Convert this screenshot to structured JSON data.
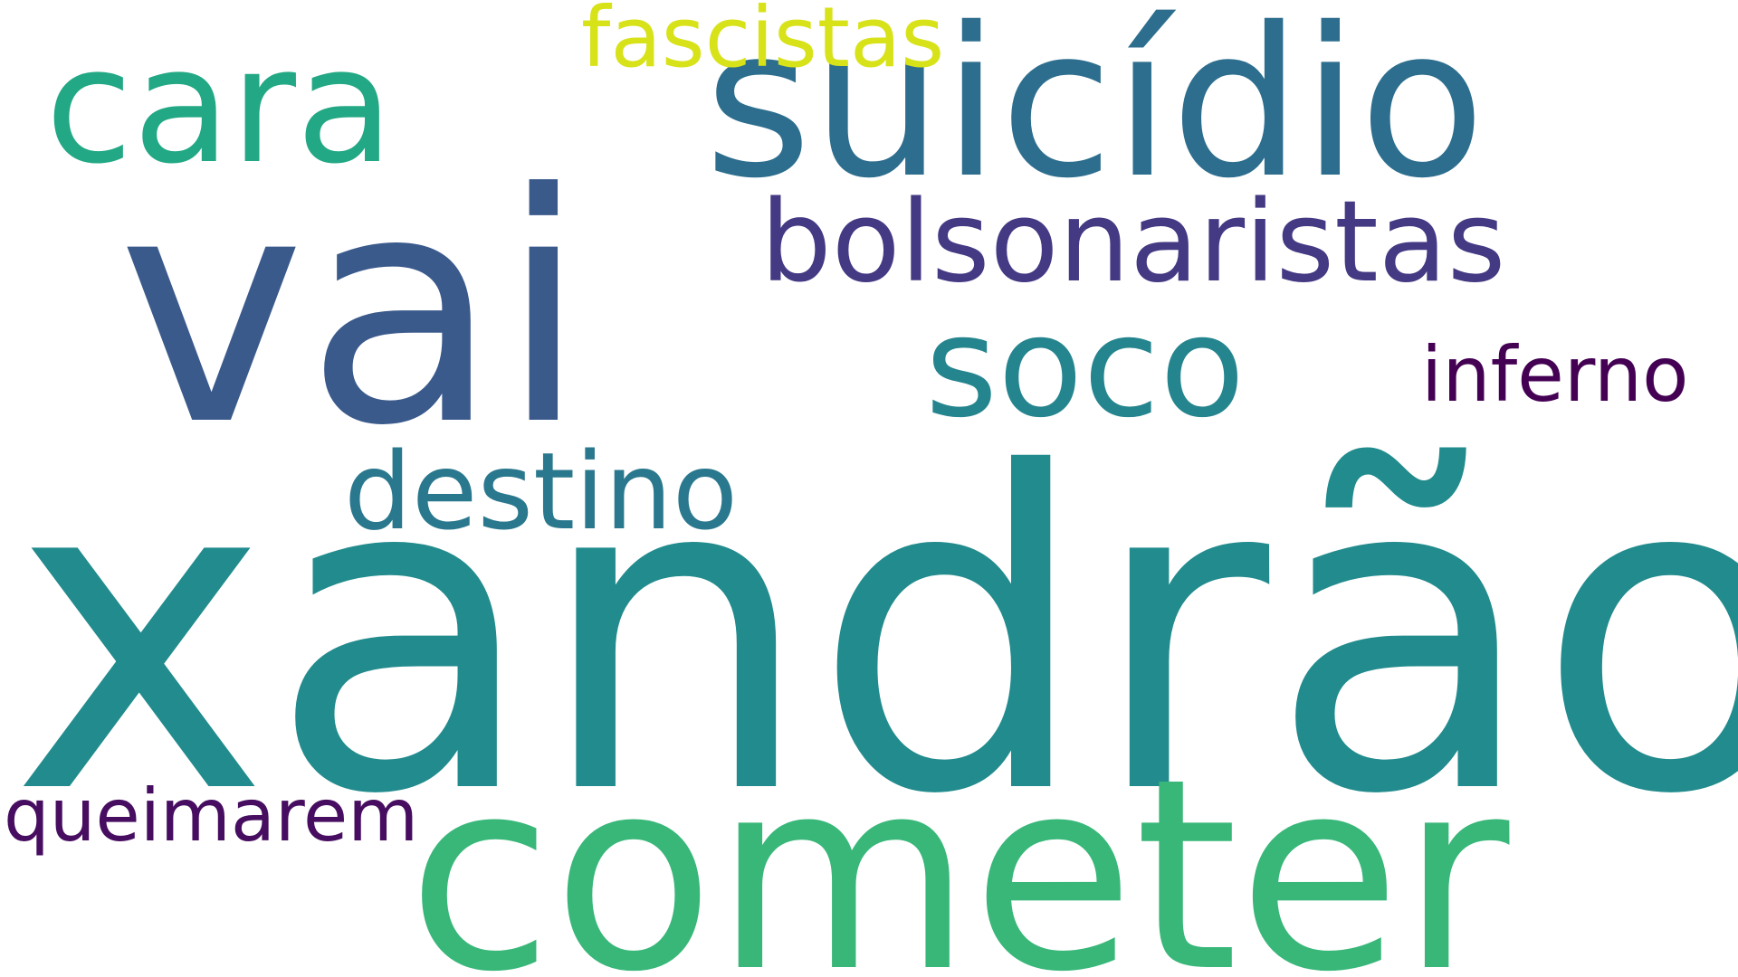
{
  "words": {
    "xandrao": {
      "text": "xandrão",
      "color": "#228b8d"
    },
    "vai": {
      "text": "vai",
      "color": "#3b5a8c"
    },
    "cometer": {
      "text": "cometer",
      "color": "#38b779"
    },
    "suicidio": {
      "text": "suicídio",
      "color": "#2d6e8e"
    },
    "soco": {
      "text": "soco",
      "color": "#25858e"
    },
    "cara": {
      "text": "cara",
      "color": "#22a884"
    },
    "bolsonaristas": {
      "text": "bolsonaristas",
      "color": "#443983"
    },
    "destino": {
      "text": "destino",
      "color": "#2a788e"
    },
    "fascistas": {
      "text": "fascistas",
      "color": "#d8e219"
    },
    "inferno": {
      "text": "inferno",
      "color": "#440154"
    },
    "queimarem": {
      "text": "queimarem",
      "color": "#470d60"
    }
  }
}
